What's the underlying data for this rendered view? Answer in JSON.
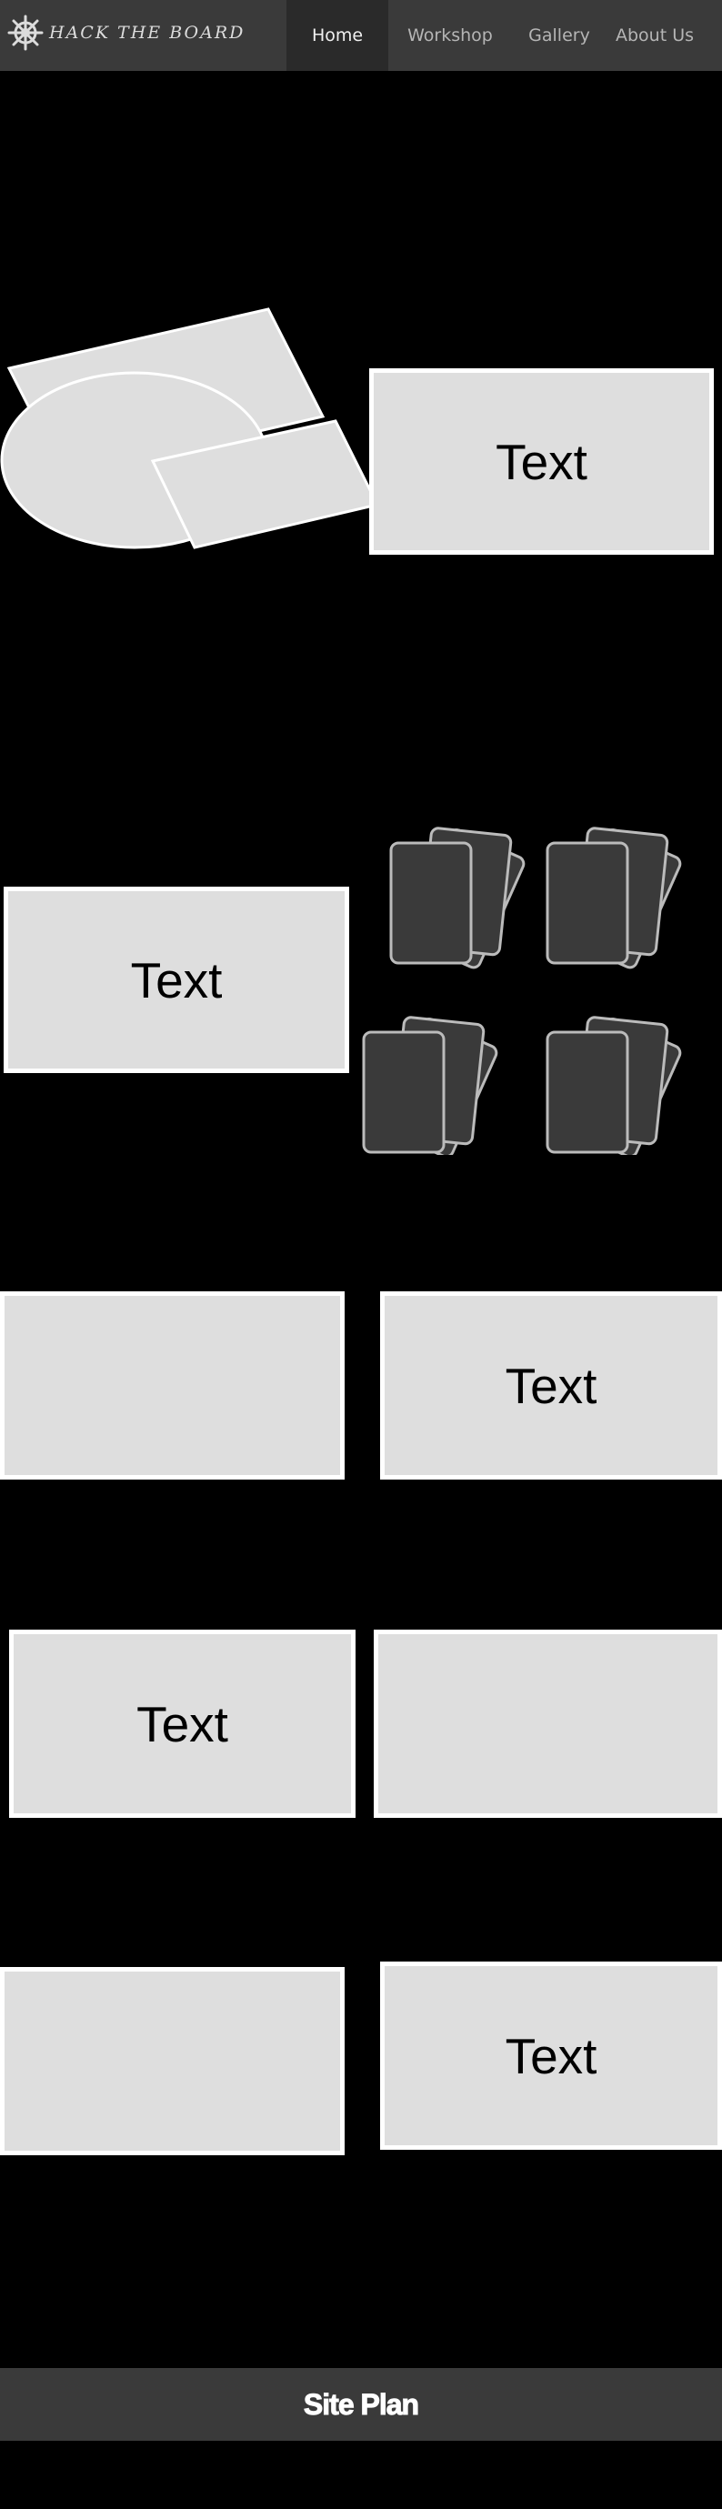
{
  "header": {
    "logo_text": "HACK THE BOARD",
    "nav": [
      {
        "label": "Home",
        "active": true
      },
      {
        "label": "Workshop",
        "active": false
      },
      {
        "label": "Gallery",
        "active": false
      },
      {
        "label": "About Us",
        "active": false
      }
    ]
  },
  "sections": {
    "s1": {
      "label": "Text"
    },
    "s2": {
      "label": "Text"
    },
    "s3": {
      "label": "Text"
    },
    "s4": {
      "label": "Text"
    },
    "s5": {
      "label": "Text"
    }
  },
  "footer": {
    "title": "Site Plan"
  },
  "colors": {
    "background": "#000000",
    "header": "#3a3a3a",
    "nav_active": "#2a2a2a",
    "box_fill": "#dedede",
    "box_border": "#ffffff",
    "card_fill": "#3a3a3a"
  },
  "icons": {
    "logo": "ship-wheel-icon"
  }
}
